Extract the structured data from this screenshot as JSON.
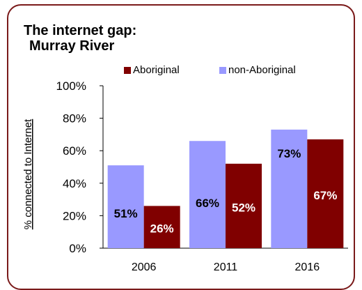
{
  "chart_data": {
    "type": "bar",
    "title_line1": "The internet gap:",
    "title_line2": "Murray River",
    "xlabel": "",
    "ylabel": "% connected to Internet",
    "ylim": [
      0,
      100
    ],
    "yticks": [
      "0%",
      "20%",
      "40%",
      "60%",
      "80%",
      "100%"
    ],
    "categories": [
      "2006",
      "2011",
      "2016"
    ],
    "series": [
      {
        "name": "Aboriginal",
        "color": "#800000",
        "values": [
          26,
          52,
          67
        ],
        "labels": [
          "26%",
          "52%",
          "67%"
        ],
        "label_color": "#ffffff"
      },
      {
        "name": "non-Aboriginal",
        "color": "#9999ff",
        "values": [
          51,
          66,
          73
        ],
        "labels": [
          "51%",
          "66%",
          "73%"
        ],
        "label_color": "#000000"
      }
    ],
    "legend_position": "top",
    "grid": false
  }
}
